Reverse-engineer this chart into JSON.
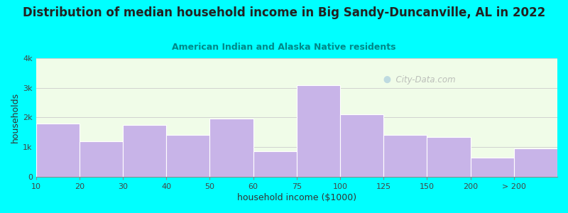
{
  "title": "Distribution of median household income in Big Sandy-Duncanville, AL in 2022",
  "subtitle": "American Indian and Alaska Native residents",
  "xlabel": "household income ($1000)",
  "ylabel": "households",
  "bar_color": "#c8b4e8",
  "bar_edgecolor": "#ffffff",
  "background_outer": "#00ffff",
  "background_inner_top": "#e8fce8",
  "background_inner_bottom": "#f8fff8",
  "categories": [
    "10",
    "20",
    "30",
    "40",
    "50",
    "60",
    "75",
    "100",
    "125",
    "150",
    "200",
    "> 200"
  ],
  "values": [
    1800,
    1200,
    1750,
    1400,
    1950,
    850,
    3100,
    2100,
    1400,
    1350,
    650,
    950
  ],
  "bin_edges": [
    0,
    10,
    20,
    30,
    40,
    50,
    60,
    75,
    100,
    125,
    150,
    200,
    250
  ],
  "ylim": [
    0,
    4000
  ],
  "yticks": [
    0,
    1000,
    2000,
    3000,
    4000
  ],
  "ytick_labels": [
    "0",
    "1k",
    "2k",
    "3k",
    "4k"
  ],
  "title_fontsize": 12,
  "subtitle_fontsize": 9,
  "axis_label_fontsize": 9,
  "tick_fontsize": 8,
  "title_color": "#222222",
  "subtitle_color": "#008888",
  "watermark_text": "City-Data.com",
  "watermark_color": "#aaaaaa",
  "grid_color": "#cccccc"
}
